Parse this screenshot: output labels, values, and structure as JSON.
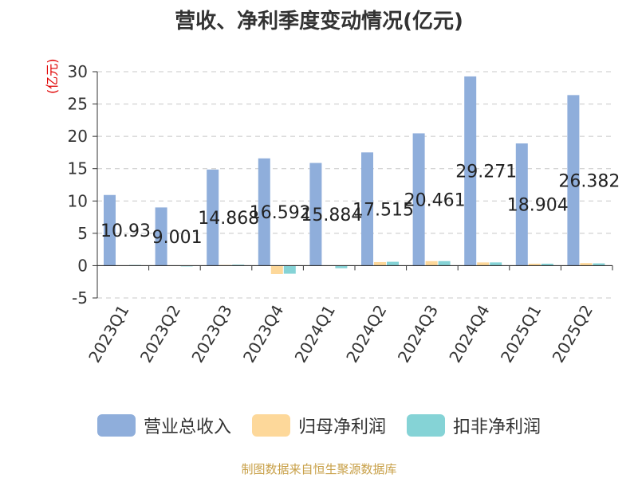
{
  "title": "营收、净利季度变动情况(亿元)",
  "unit_label": "(亿元)",
  "source": "制图数据来自恒生聚源数据库",
  "colors": {
    "revenue": "#8faedb",
    "net_profit": "#fdd89a",
    "deducted_profit": "#85d3d6",
    "grid": "#c8c8c8",
    "axis": "#333333",
    "unit": "#e00000",
    "source": "#c8a048"
  },
  "chart_data": {
    "type": "bar",
    "title": "营收、净利季度变动情况(亿元)",
    "ylabel": "(亿元)",
    "ylim": [
      -5,
      30
    ],
    "yticks": [
      -5,
      0,
      5,
      10,
      15,
      20,
      25,
      30
    ],
    "grid": true,
    "legend_position": "bottom",
    "categories": [
      "2023Q1",
      "2023Q2",
      "2023Q3",
      "2023Q4",
      "2024Q1",
      "2024Q2",
      "2024Q3",
      "2024Q4",
      "2025Q1",
      "2025Q2"
    ],
    "series": [
      {
        "name": "营业总收入",
        "color": "#8faedb",
        "values": [
          10.93,
          9.001,
          14.868,
          16.592,
          15.884,
          17.515,
          20.461,
          29.271,
          18.904,
          26.382
        ],
        "data_labels": [
          "10.93",
          "9.001",
          "14.868",
          "16.592",
          "15.884",
          "17.515",
          "20.461",
          "29.271",
          "18.904",
          "26.382"
        ]
      },
      {
        "name": "归母净利润",
        "color": "#fdd89a",
        "values": [
          0.05,
          0.05,
          0.1,
          -1.3,
          0.05,
          0.55,
          0.7,
          0.5,
          0.3,
          0.4
        ]
      },
      {
        "name": "扣非净利润",
        "color": "#85d3d6",
        "values": [
          0.1,
          -0.05,
          0.15,
          -1.25,
          -0.4,
          0.6,
          0.7,
          0.5,
          0.3,
          0.35
        ]
      }
    ]
  }
}
